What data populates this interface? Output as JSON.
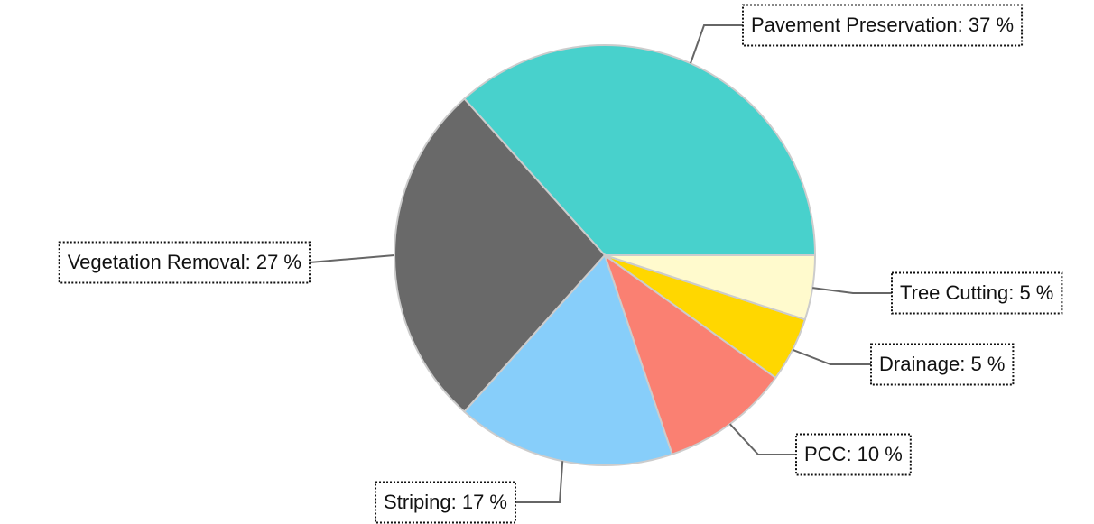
{
  "chart_data": {
    "type": "pie",
    "values": [
      37,
      27,
      17,
      10,
      5,
      5
    ],
    "value_labels": [
      "Pavement Preservation: 37 %",
      "Vegetation Removal: 27 %",
      "Striping: 17 %",
      "PCC: 10 %",
      "Drainage: 5 %",
      "Tree Cutting: 5 %"
    ],
    "colors": [
      "#48d1cc",
      "#696969",
      "#87cefa",
      "#fa8072",
      "#ffd700",
      "#fffacd"
    ]
  }
}
